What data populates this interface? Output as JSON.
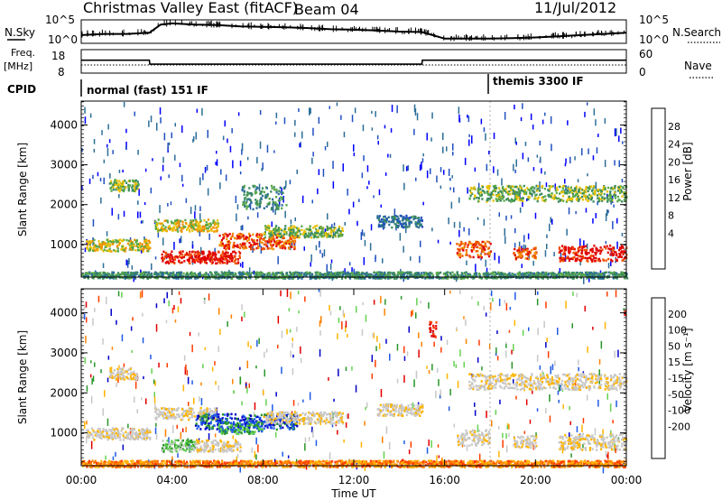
{
  "header": {
    "title": "Christmas Valley East (fitACF)",
    "beam": "Beam 04",
    "date": "11/Jul/2012"
  },
  "colors": {
    "power_scale": [
      "#0000ff",
      "#2050c0",
      "#2c6e98",
      "#3a8a5e",
      "#58a84a",
      "#e8c000",
      "#f09000",
      "#f05000",
      "#e00000"
    ],
    "velocity_scale": [
      "#0000c8",
      "#1e5ae6",
      "#289628",
      "#64d250",
      "#c8c8c8",
      "#c8c8c8",
      "#ffb400",
      "#ff8200",
      "#ff3c00",
      "#e10000"
    ],
    "ground_scatter": "#bebebe"
  },
  "chart_data": [
    {
      "type": "line",
      "panel": "noise",
      "labels": {
        "left": "N.Sky",
        "right": "N.Search"
      },
      "left_ticks": [
        "10^5",
        "10^0"
      ],
      "right_ticks": [
        "10^5",
        "10^0"
      ],
      "x": [
        0,
        1,
        2,
        3,
        3.5,
        4,
        5,
        6,
        7,
        8,
        9,
        10,
        11,
        12,
        13,
        14,
        15,
        16,
        17,
        18,
        19,
        20,
        21,
        22,
        23,
        24
      ],
      "series": [
        {
          "values": [
            0.35,
            0.4,
            0.4,
            0.45,
            0.8,
            0.85,
            0.8,
            0.78,
            0.72,
            0.7,
            0.68,
            0.65,
            0.6,
            0.58,
            0.55,
            0.5,
            0.48,
            0.2,
            0.2,
            0.2,
            0.22,
            0.25,
            0.3,
            0.35,
            0.4,
            0.45
          ]
        }
      ]
    },
    {
      "type": "line",
      "panel": "frequency",
      "labels": {
        "left": "Freq.",
        "left_unit": "[MHz]",
        "right": "Nave"
      },
      "left_ticks": [
        "18",
        "8"
      ],
      "right_ticks": [
        "60",
        "0"
      ],
      "x": [
        0,
        3,
        3.02,
        15,
        15.02,
        24
      ],
      "series": [
        {
          "values": [
            13.5,
            13.5,
            11.8,
            11.8,
            13.5,
            13.5
          ]
        }
      ]
    },
    {
      "type": "heatmap",
      "panel": "cpid",
      "label": "CPID",
      "segments": [
        {
          "start_hour": 0,
          "end_hour": 18,
          "text": "normal (fast) 151 IF"
        },
        {
          "start_hour": 18,
          "end_hour": 24,
          "text": "themis 3300 IF"
        }
      ]
    },
    {
      "type": "heatmap",
      "panel": "power",
      "ylabel": "Slant Range [km]",
      "colorbar_label": "Power [dB]",
      "colorbar_ticks": [
        "28",
        "24",
        "20",
        "16",
        "12",
        "8",
        "4"
      ],
      "ylim": [
        180,
        4600
      ],
      "y_ticks": [
        "4000",
        "3000",
        "2000",
        "1000"
      ],
      "features": [
        {
          "start": 0.2,
          "end": 3,
          "range": 1000,
          "width": 150,
          "level": 5
        },
        {
          "start": 1.2,
          "end": 2.5,
          "range": 2500,
          "width": 150,
          "level": 4
        },
        {
          "start": 3.2,
          "end": 6,
          "range": 1500,
          "width": 150,
          "level": 5
        },
        {
          "start": 3.5,
          "end": 7,
          "range": 700,
          "width": 150,
          "level": 8
        },
        {
          "start": 6,
          "end": 9.5,
          "range": 1100,
          "width": 200,
          "level": 7
        },
        {
          "start": 8,
          "end": 11.5,
          "range": 1350,
          "width": 150,
          "level": 4
        },
        {
          "start": 7,
          "end": 9,
          "range": 2200,
          "width": 300,
          "level": 3
        },
        {
          "start": 13,
          "end": 15,
          "range": 1600,
          "width": 150,
          "level": 2
        },
        {
          "start": 16.5,
          "end": 18,
          "range": 900,
          "width": 200,
          "level": 7
        },
        {
          "start": 19,
          "end": 20,
          "range": 800,
          "width": 150,
          "level": 7
        },
        {
          "start": 21,
          "end": 24,
          "range": 800,
          "width": 200,
          "level": 8
        },
        {
          "start": 17,
          "end": 24,
          "range": 2300,
          "width": 200,
          "level": 4
        },
        {
          "start": 0,
          "end": 24,
          "range": 250,
          "width": 80,
          "level": 3
        }
      ]
    },
    {
      "type": "heatmap",
      "panel": "velocity",
      "ylabel": "Slant Range [km]",
      "xlabel": "Time UT",
      "colorbar_label": "Velocity [m s⁻¹]",
      "colorbar_ticks": [
        "200",
        "100",
        "50",
        "15",
        "-15",
        "-50",
        "-100",
        "-200"
      ],
      "ylim": [
        180,
        4600
      ],
      "y_ticks": [
        "4000",
        "3000",
        "2000",
        "1000"
      ],
      "x_ticks": [
        "00:00",
        "04:00",
        "08:00",
        "12:00",
        "16:00",
        "20:00",
        "00:00"
      ],
      "xlim": [
        0,
        24
      ],
      "features": [
        {
          "start": 0.2,
          "end": 3,
          "range": 1000,
          "width": 150,
          "level": 5
        },
        {
          "start": 1.2,
          "end": 2.5,
          "range": 2500,
          "width": 150,
          "level": 5
        },
        {
          "start": 3.2,
          "end": 6,
          "range": 1500,
          "width": 150,
          "level": 5
        },
        {
          "start": 3.5,
          "end": 5,
          "range": 700,
          "width": 150,
          "level": 3
        },
        {
          "start": 5,
          "end": 9.5,
          "range": 1300,
          "width": 200,
          "level": 1
        },
        {
          "start": 6,
          "end": 8,
          "range": 1150,
          "width": 150,
          "level": 2
        },
        {
          "start": 5,
          "end": 7,
          "range": 700,
          "width": 150,
          "level": 5
        },
        {
          "start": 8,
          "end": 11.5,
          "range": 1400,
          "width": 150,
          "level": 5
        },
        {
          "start": 13,
          "end": 15,
          "range": 1600,
          "width": 150,
          "level": 5
        },
        {
          "start": 16.5,
          "end": 18,
          "range": 900,
          "width": 200,
          "level": 5
        },
        {
          "start": 19,
          "end": 20,
          "range": 800,
          "width": 150,
          "level": 5
        },
        {
          "start": 21,
          "end": 24,
          "range": 800,
          "width": 200,
          "level": 5
        },
        {
          "start": 17,
          "end": 24,
          "range": 2300,
          "width": 200,
          "level": 5
        },
        {
          "start": 15.3,
          "end": 15.6,
          "range": 3600,
          "width": 200,
          "level": 9
        },
        {
          "start": 0,
          "end": 24,
          "range": 250,
          "width": 80,
          "level": 7
        }
      ]
    }
  ]
}
